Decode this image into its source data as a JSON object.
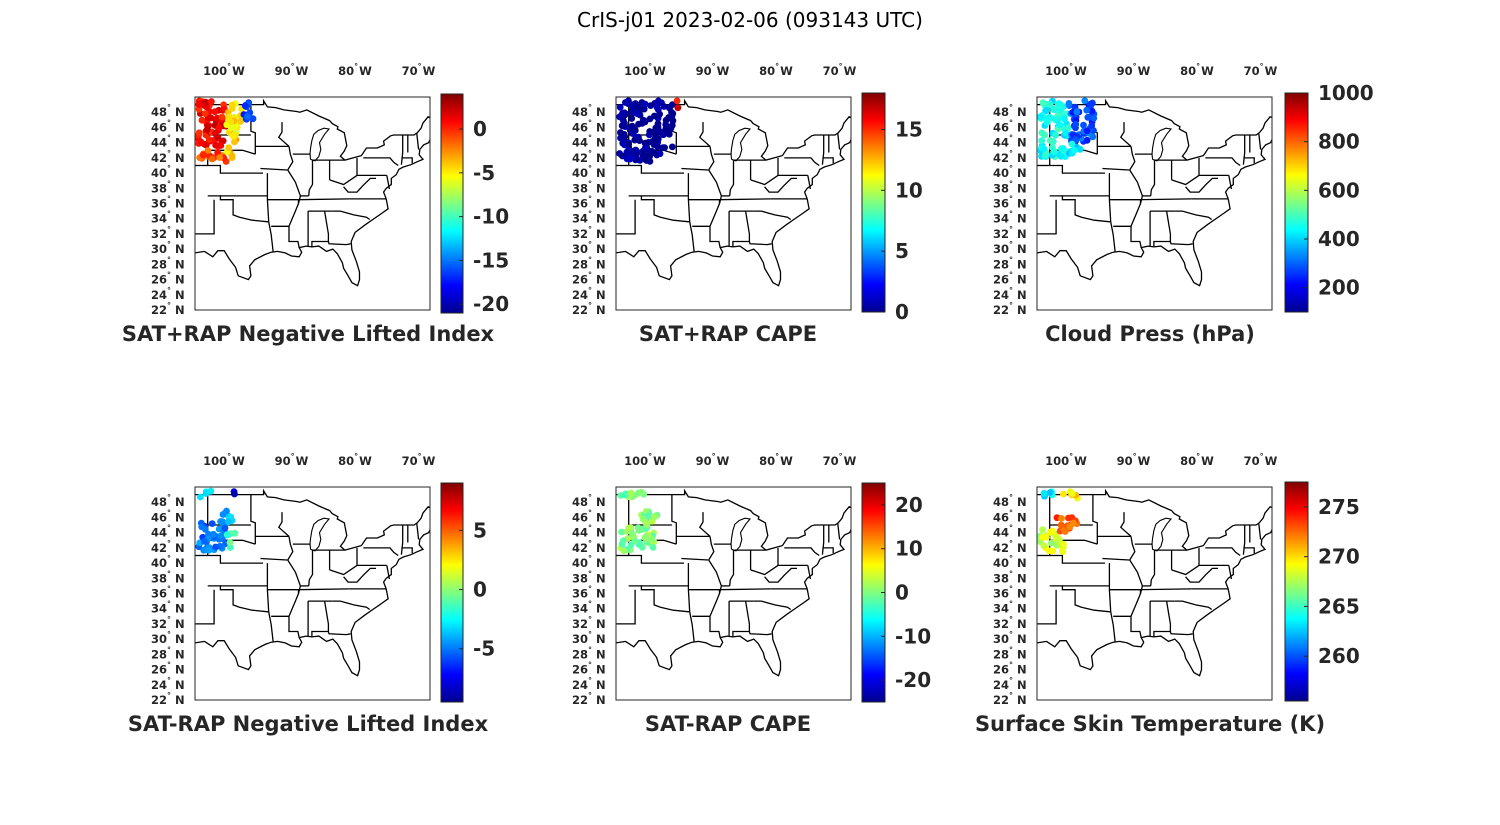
{
  "figure": {
    "title": "CrIS-j01 2023-02-06 (093143 UTC)"
  },
  "colormap": [
    "#00008f",
    "#0000ff",
    "#0080ff",
    "#00ffff",
    "#80ff80",
    "#ffff00",
    "#ff8000",
    "#ff0000",
    "#800000"
  ],
  "chart_data": [
    {
      "type": "scatter",
      "title": "SAT+RAP Negative Lifted Index",
      "lon_ticks": [
        "100",
        "90",
        "80",
        "70"
      ],
      "lon_hem": "W",
      "lat_ticks": [
        "48",
        "46",
        "44",
        "42",
        "40",
        "38",
        "36",
        "34",
        "32",
        "30",
        "28",
        "26",
        "24",
        "22"
      ],
      "lat_hem": "N",
      "extent": {
        "lon": [
          -106,
          -69
        ],
        "lat": [
          22,
          50
        ]
      },
      "colorbar": {
        "range": [
          -21,
          4
        ],
        "ticks": [
          "0",
          "-5",
          "-10",
          "-15",
          "-20"
        ],
        "tick_values": [
          0,
          -5,
          -10,
          -15,
          -20
        ]
      },
      "swath": [
        {
          "lon_range": [
            -105.5,
            -101
          ],
          "lat_range": [
            43,
            49.5
          ],
          "value": 1
        },
        {
          "lon_range": [
            -105.5,
            -101
          ],
          "lat_range": [
            41.5,
            43
          ],
          "value": -1
        },
        {
          "lon_range": [
            -101,
            -98.5
          ],
          "lat_range": [
            45,
            49.5
          ],
          "value": -5
        },
        {
          "lon_range": [
            -101,
            -99.5
          ],
          "lat_range": [
            42,
            45
          ],
          "value": -4
        },
        {
          "lon_range": [
            -98.5,
            -96.5
          ],
          "lat_range": [
            47,
            49.5
          ],
          "value": -16
        }
      ]
    },
    {
      "type": "scatter",
      "title": "SAT+RAP CAPE",
      "lon_ticks": [
        "100",
        "90",
        "80",
        "70"
      ],
      "lon_hem": "W",
      "lat_ticks": [
        "48",
        "46",
        "44",
        "42",
        "40",
        "38",
        "36",
        "34",
        "32",
        "30",
        "28",
        "26",
        "24",
        "22"
      ],
      "lat_hem": "N",
      "extent": {
        "lon": [
          -106,
          -69
        ],
        "lat": [
          22,
          50
        ]
      },
      "colorbar": {
        "range": [
          0,
          18
        ],
        "ticks": [
          "15",
          "10",
          "5",
          "0"
        ],
        "tick_values": [
          15,
          10,
          5,
          0
        ]
      },
      "swath": [
        {
          "lon_range": [
            -105.5,
            -98.5
          ],
          "lat_range": [
            41.5,
            49.5
          ],
          "value": 0
        },
        {
          "lon_range": [
            -98.5,
            -97
          ],
          "lat_range": [
            43,
            49.5
          ],
          "value": 0
        },
        {
          "lon_range": [
            -96.5,
            -95.5
          ],
          "lat_range": [
            48.5,
            49.5
          ],
          "value": 16
        }
      ]
    },
    {
      "type": "scatter",
      "title": "Cloud Press (hPa)",
      "lon_ticks": [
        "100",
        "90",
        "80",
        "70"
      ],
      "lon_hem": "W",
      "lat_ticks": [
        "48",
        "46",
        "44",
        "42",
        "40",
        "38",
        "36",
        "34",
        "32",
        "30",
        "28",
        "26",
        "24",
        "22"
      ],
      "lat_hem": "N",
      "extent": {
        "lon": [
          -106,
          -69
        ],
        "lat": [
          22,
          50
        ]
      },
      "colorbar": {
        "range": [
          100,
          1000
        ],
        "ticks": [
          "1000",
          "800",
          "600",
          "400",
          "200"
        ],
        "tick_values": [
          1000,
          800,
          600,
          400,
          200
        ]
      },
      "swath": [
        {
          "lon_range": [
            -105.5,
            -101
          ],
          "lat_range": [
            42,
            49.5
          ],
          "value": 450
        },
        {
          "lon_range": [
            -101,
            -97
          ],
          "lat_range": [
            44,
            49.5
          ],
          "value": 280
        },
        {
          "lon_range": [
            -101,
            -99
          ],
          "lat_range": [
            42,
            44
          ],
          "value": 420
        }
      ]
    },
    {
      "type": "scatter",
      "title": "SAT-RAP Negative Lifted Index",
      "lon_ticks": [
        "100",
        "90",
        "80",
        "70"
      ],
      "lon_hem": "W",
      "lat_ticks": [
        "48",
        "46",
        "44",
        "42",
        "40",
        "38",
        "36",
        "34",
        "32",
        "30",
        "28",
        "26",
        "24",
        "22"
      ],
      "lat_hem": "N",
      "extent": {
        "lon": [
          -106,
          -69
        ],
        "lat": [
          22,
          50
        ]
      },
      "colorbar": {
        "range": [
          -9.5,
          9
        ],
        "ticks": [
          "5",
          "0",
          "-5"
        ],
        "tick_values": [
          5,
          0,
          -5
        ]
      },
      "swath": [
        {
          "lon_range": [
            -105.5,
            -101
          ],
          "lat_range": [
            41.5,
            45.5
          ],
          "value": -5
        },
        {
          "lon_range": [
            -101,
            -99.5
          ],
          "lat_range": [
            42,
            44
          ],
          "value": -1
        },
        {
          "lon_range": [
            -102,
            -100
          ],
          "lat_range": [
            45,
            47
          ],
          "value": -4
        },
        {
          "lon_range": [
            -105.5,
            -103.5
          ],
          "lat_range": [
            48.5,
            49.5
          ],
          "value": -3
        },
        {
          "lon_range": [
            -101,
            -99
          ],
          "lat_range": [
            49,
            49.5
          ],
          "value": -8
        }
      ]
    },
    {
      "type": "scatter",
      "title": "SAT-RAP CAPE",
      "lon_ticks": [
        "100",
        "90",
        "80",
        "70"
      ],
      "lon_hem": "W",
      "lat_ticks": [
        "48",
        "46",
        "44",
        "42",
        "40",
        "38",
        "36",
        "34",
        "32",
        "30",
        "28",
        "26",
        "24",
        "22"
      ],
      "lat_hem": "N",
      "extent": {
        "lon": [
          -106,
          -69
        ],
        "lat": [
          22,
          50
        ]
      },
      "colorbar": {
        "range": [
          -25,
          25
        ],
        "ticks": [
          "20",
          "10",
          "0",
          "-10",
          "-20"
        ],
        "tick_values": [
          20,
          10,
          0,
          -10,
          -20
        ]
      },
      "swath": [
        {
          "lon_range": [
            -105.5,
            -100
          ],
          "lat_range": [
            41.5,
            45
          ],
          "value": 0
        },
        {
          "lon_range": [
            -102,
            -99
          ],
          "lat_range": [
            45,
            47
          ],
          "value": 0
        },
        {
          "lon_range": [
            -105.5,
            -101
          ],
          "lat_range": [
            48.5,
            49.5
          ],
          "value": 0
        }
      ]
    },
    {
      "type": "scatter",
      "title": "Surface Skin Temperature (K)",
      "lon_ticks": [
        "100",
        "90",
        "80",
        "70"
      ],
      "lon_hem": "W",
      "lat_ticks": [
        "48",
        "46",
        "44",
        "42",
        "40",
        "38",
        "36",
        "34",
        "32",
        "30",
        "28",
        "26",
        "24",
        "22"
      ],
      "lat_hem": "N",
      "extent": {
        "lon": [
          -106,
          -69
        ],
        "lat": [
          22,
          50
        ]
      },
      "colorbar": {
        "range": [
          255.5,
          277.5
        ],
        "ticks": [
          "275",
          "270",
          "265",
          "260"
        ],
        "tick_values": [
          275,
          270,
          265,
          260
        ]
      },
      "swath": [
        {
          "lon_range": [
            -105.5,
            -101.5
          ],
          "lat_range": [
            41.5,
            44.5
          ],
          "value": 268
        },
        {
          "lon_range": [
            -103,
            -99.5
          ],
          "lat_range": [
            44,
            46
          ],
          "value": 273
        },
        {
          "lon_range": [
            -105.5,
            -103
          ],
          "lat_range": [
            48.5,
            49.5
          ],
          "value": 263
        },
        {
          "lon_range": [
            -102,
            -99.5
          ],
          "lat_range": [
            48.5,
            49.5
          ],
          "value": 270
        }
      ]
    }
  ]
}
